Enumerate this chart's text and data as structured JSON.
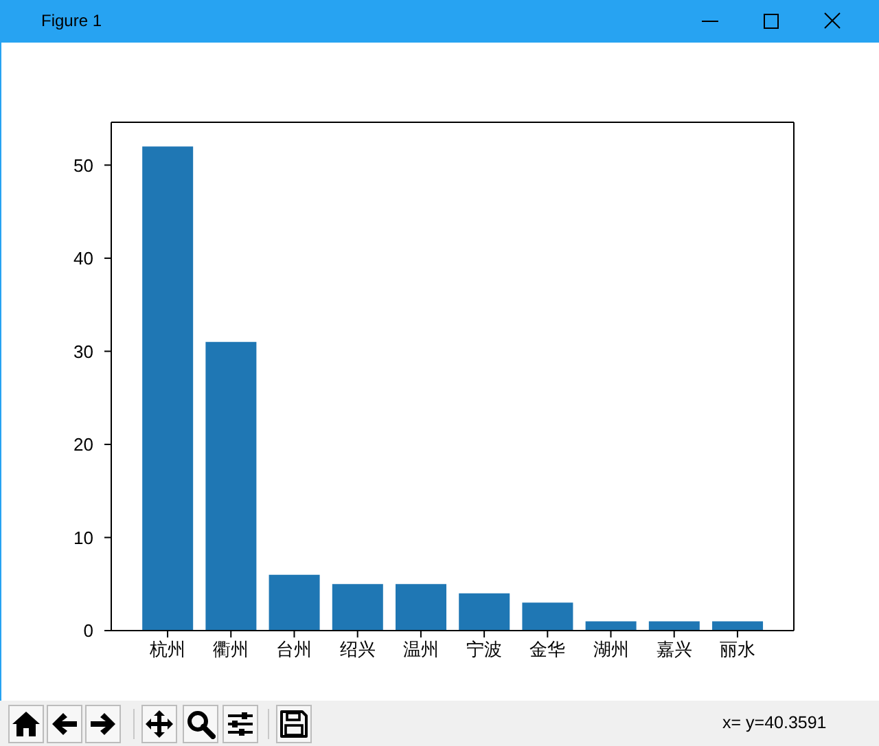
{
  "chart_data": {
    "type": "bar",
    "categories": [
      "杭州",
      "衢州",
      "台州",
      "绍兴",
      "温州",
      "宁波",
      "金华",
      "湖州",
      "嘉兴",
      "丽水"
    ],
    "values": [
      52,
      31,
      6,
      5,
      5,
      4,
      3,
      1,
      1,
      1
    ],
    "color": "#1f77b4",
    "ylim": [
      0,
      54.6
    ],
    "yticks": [
      0,
      10,
      20,
      30,
      40,
      50
    ],
    "annotations": [
      "Figure 1",
      "x= y=40.3591"
    ]
  }
}
